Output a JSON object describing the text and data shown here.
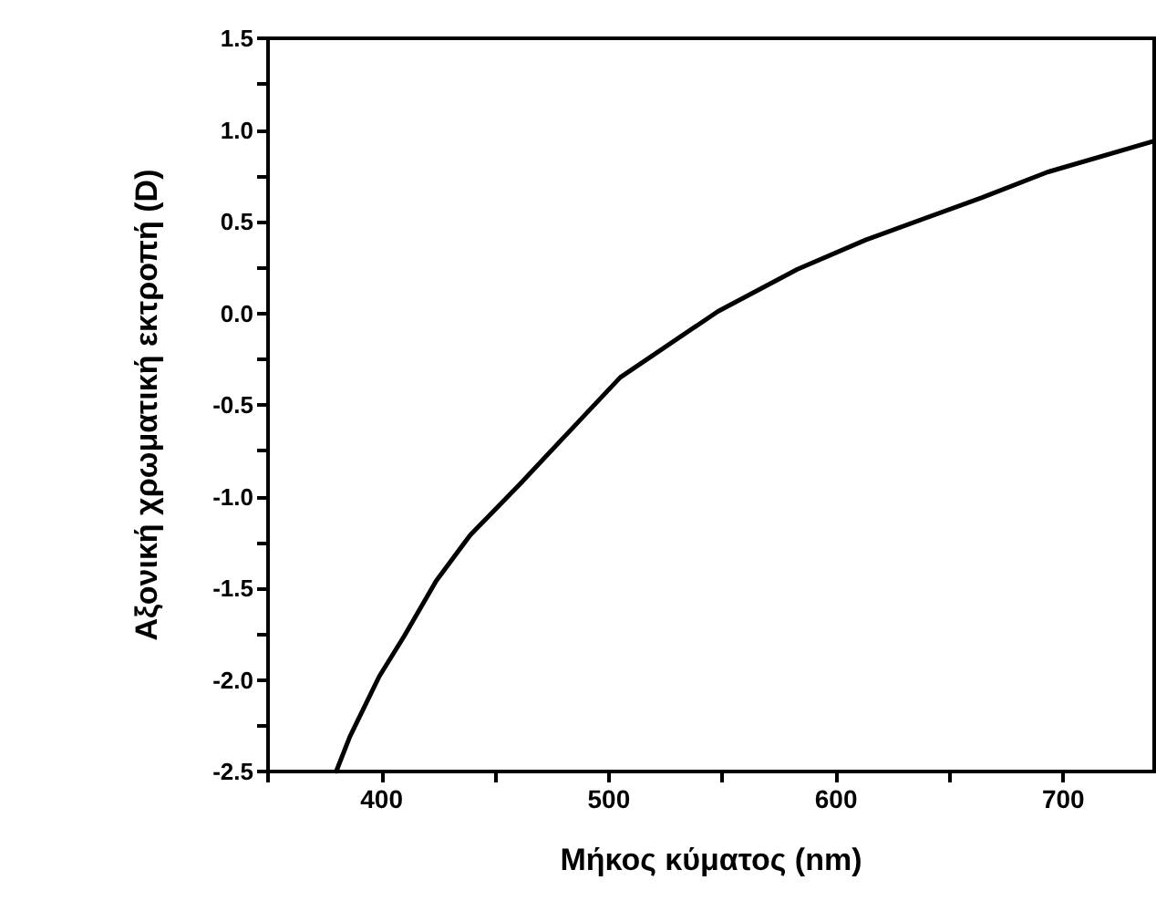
{
  "chart_data": {
    "type": "line",
    "xlabel": "Μήκος κύματος (nm)",
    "ylabel": "Αξονική χρωματική εκτροπή (D)",
    "xlim": [
      350,
      740
    ],
    "xticks": [
      {
        "value": 350,
        "label": null
      },
      400,
      {
        "value": 450,
        "label": null
      },
      500,
      {
        "value": 550,
        "label": null
      },
      600,
      {
        "value": 650,
        "label": null
      },
      700
    ],
    "ylim": [
      -2.5,
      1.5
    ],
    "yticks": [
      {
        "value": -2.5,
        "label": "-2.5"
      },
      {
        "value": -2.25,
        "label": null
      },
      {
        "value": -2.0,
        "label": "-2.0"
      },
      {
        "value": -1.75,
        "label": null
      },
      {
        "value": -1.5,
        "label": "-1.5"
      },
      {
        "value": -1.25,
        "label": null
      },
      {
        "value": -1.0,
        "label": "-1.0"
      },
      {
        "value": -0.75,
        "label": null
      },
      {
        "value": -0.5,
        "label": "-0.5"
      },
      {
        "value": -0.25,
        "label": null
      },
      {
        "value": 0.0,
        "label": "0.0"
      },
      {
        "value": 0.25,
        "label": null
      },
      {
        "value": 0.5,
        "label": "0.5"
      },
      {
        "value": 0.75,
        "label": null
      },
      {
        "value": 1.0,
        "label": "1.0"
      },
      {
        "value": 1.25,
        "label": null
      },
      {
        "value": 1.5,
        "label": "1.5"
      }
    ],
    "grid": false,
    "marker": "none",
    "line_style": "solid",
    "series": [
      {
        "color": "#000000",
        "x": [
          380,
          386,
          399,
          410,
          424,
          439,
          461,
          486,
          505,
          548,
          583,
          613,
          664,
          693,
          740
        ],
        "values": [
          -2.5,
          -2.31,
          -1.98,
          -1.76,
          -1.46,
          -1.21,
          -0.93,
          -0.6,
          -0.35,
          0.01,
          0.24,
          0.4,
          0.63,
          0.77,
          0.94
        ]
      }
    ]
  }
}
